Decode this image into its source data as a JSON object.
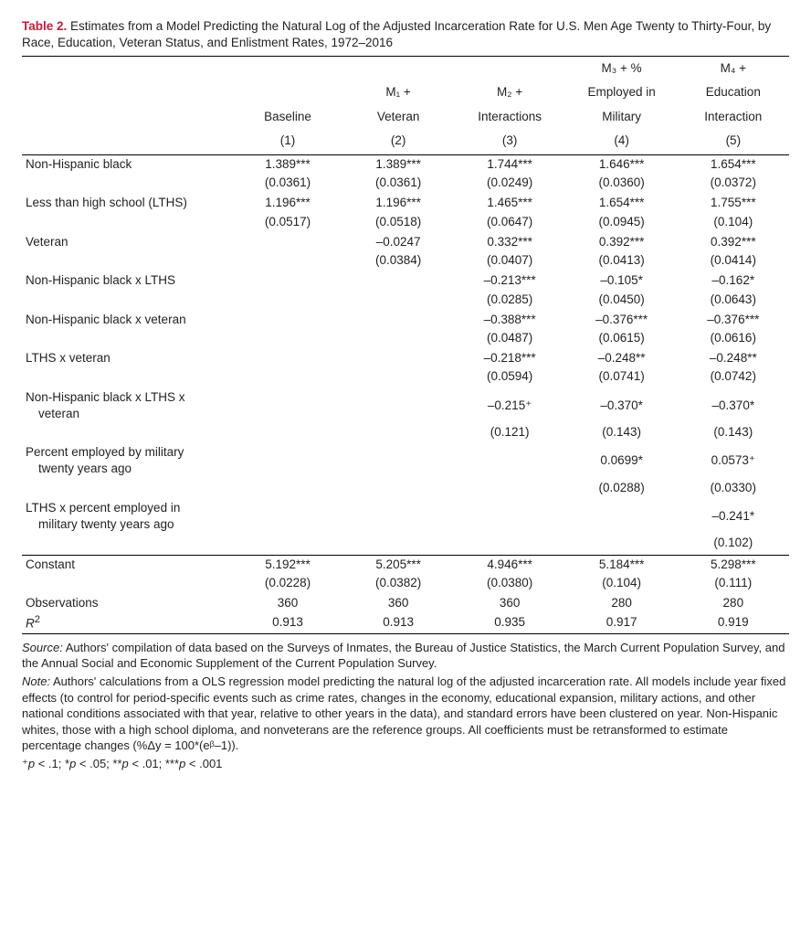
{
  "title_label": "Table 2.",
  "title_text": " Estimates from a Model Predicting the Natural Log of the Adjusted Incarceration Rate for U.S. Men Age Twenty to Thirty-Four, by Race, Education, Veteran Status, and Enlistment Rates, 1972–2016",
  "columns": {
    "c1": {
      "l1": "",
      "l2": "Baseline",
      "l3": "(1)"
    },
    "c2": {
      "l1": "M₁ +",
      "l2": "Veteran",
      "l3": "(2)"
    },
    "c3": {
      "l1": "M₂ +",
      "l2": "Interactions",
      "l3": "(3)"
    },
    "c4": {
      "l0": "M₃ + %",
      "l1": "Employed in",
      "l2": "Military",
      "l3": "(4)"
    },
    "c5": {
      "l0": "M₄ +",
      "l1": "Education",
      "l2": "Interaction",
      "l3": "(5)"
    }
  },
  "rows": [
    {
      "label": "Non-Hispanic black",
      "v": [
        "1.389***",
        "1.389***",
        "1.744***",
        "1.646***",
        "1.654***"
      ],
      "se": [
        "(0.0361)",
        "(0.0361)",
        "(0.0249)",
        "(0.0360)",
        "(0.0372)"
      ]
    },
    {
      "label": "Less than high school (LTHS)",
      "v": [
        "1.196***",
        "1.196***",
        "1.465***",
        "1.654***",
        "1.755***"
      ],
      "se": [
        "(0.0517)",
        "(0.0518)",
        "(0.0647)",
        "(0.0945)",
        "(0.104)"
      ]
    },
    {
      "label": "Veteran",
      "v": [
        "",
        "–0.0247",
        "0.332***",
        "0.392***",
        "0.392***"
      ],
      "se": [
        "",
        "(0.0384)",
        "(0.0407)",
        "(0.0413)",
        "(0.0414)"
      ]
    },
    {
      "label": "Non-Hispanic black x LTHS",
      "v": [
        "",
        "",
        "–0.213***",
        "–0.105*",
        "–0.162*"
      ],
      "se": [
        "",
        "",
        "(0.0285)",
        "(0.0450)",
        "(0.0643)"
      ]
    },
    {
      "label": "Non-Hispanic black x veteran",
      "v": [
        "",
        "",
        "–0.388***",
        "–0.376***",
        "–0.376***"
      ],
      "se": [
        "",
        "",
        "(0.0487)",
        "(0.0615)",
        "(0.0616)"
      ]
    },
    {
      "label": "LTHS x veteran",
      "v": [
        "",
        "",
        "–0.218***",
        "–0.248**",
        "–0.248**"
      ],
      "se": [
        "",
        "",
        "(0.0594)",
        "(0.0741)",
        "(0.0742)"
      ]
    },
    {
      "label": "Non-Hispanic black x LTHS x",
      "label2": "veteran",
      "v": [
        "",
        "",
        "–0.215⁺",
        "–0.370*",
        "–0.370*"
      ],
      "se": [
        "",
        "",
        "(0.121)",
        "(0.143)",
        "(0.143)"
      ]
    },
    {
      "label": "Percent employed by military",
      "label2": "twenty years ago",
      "v": [
        "",
        "",
        "",
        "0.0699*",
        "0.0573⁺"
      ],
      "se": [
        "",
        "",
        "",
        "(0.0288)",
        "(0.0330)"
      ]
    },
    {
      "label": "LTHS x percent employed in",
      "label2": "military twenty years ago",
      "v": [
        "",
        "",
        "",
        "",
        "–0.241*"
      ],
      "se": [
        "",
        "",
        "",
        "",
        "(0.102)"
      ]
    }
  ],
  "constant": {
    "label": "Constant",
    "v": [
      "5.192***",
      "5.205***",
      "4.946***",
      "5.184***",
      "5.298***"
    ],
    "se": [
      "(0.0228)",
      "(0.0382)",
      "(0.0380)",
      "(0.104)",
      "(0.111)"
    ]
  },
  "obs": {
    "label": "Observations",
    "v": [
      "360",
      "360",
      "360",
      "280",
      "280"
    ]
  },
  "r2": {
    "label": "R²",
    "label_html": "<i>R</i><sup>2</sup>",
    "v": [
      "0.913",
      "0.913",
      "0.935",
      "0.917",
      "0.919"
    ]
  },
  "footnotes": {
    "source": "Source: Authors' compilation of data based on the Surveys of Inmates, the Bureau of Justice Statistics, the March Current Population Survey, and the Annual Social and Economic Supplement of the Current Population Survey.",
    "note": "Note: Authors' calculations from a OLS regression model predicting the natural log of the adjusted incarceration rate. All models include year fixed effects (to control for period-specific events such as crime rates, changes in the economy, educational expansion, military actions, and other national conditions associated with that year, relative to other years in the data), and standard errors have been clustered on year. Non-Hispanic whites, those with a high school diploma, and nonveterans are the reference groups. All coefficients must be retransformed to estimate percentage changes (%Δy = 100*(eᵝ–1)).",
    "sig": "⁺p < .1; *p < .05; **p < .01; ***p < .001"
  }
}
